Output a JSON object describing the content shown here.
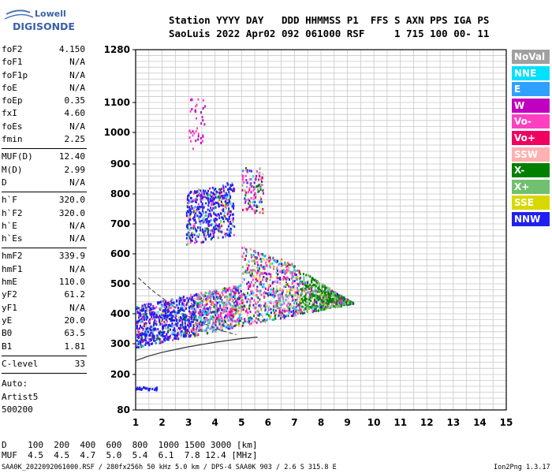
{
  "logo": {
    "line1": "Lowell",
    "line2": "DIGISONDE"
  },
  "header": {
    "line1": "Station YYYY DAY   DDD HHMMSS P1  FFS S AXN PPS IGA PS",
    "line2": "SaoLuis 2022 Apr02 092 061000 RSF     1 715 100 00- 11"
  },
  "params": [
    [
      {
        "k": "foF2",
        "v": "4.150"
      },
      {
        "k": "foF1",
        "v": "N/A"
      },
      {
        "k": "foF1p",
        "v": "N/A"
      },
      {
        "k": "foE",
        "v": "N/A"
      },
      {
        "k": "foEp",
        "v": "0.35"
      },
      {
        "k": "fxI",
        "v": "4.60"
      },
      {
        "k": "foEs",
        "v": "N/A"
      },
      {
        "k": "fmin",
        "v": "2.25"
      }
    ],
    [
      {
        "k": "MUF(D)",
        "v": "12.40"
      },
      {
        "k": "M(D)",
        "v": "2.99"
      },
      {
        "k": "D",
        "v": "N/A"
      }
    ],
    [
      {
        "k": "h`F",
        "v": "320.0"
      },
      {
        "k": "h`F2",
        "v": "320.0"
      },
      {
        "k": "h`E",
        "v": "N/A"
      },
      {
        "k": "h`Es",
        "v": "N/A"
      }
    ],
    [
      {
        "k": "hmF2",
        "v": "339.9"
      },
      {
        "k": "hmF1",
        "v": "N/A"
      },
      {
        "k": "hmE",
        "v": "110.0"
      },
      {
        "k": "yF2",
        "v": "61.2"
      },
      {
        "k": "yF1",
        "v": "N/A"
      },
      {
        "k": "yE",
        "v": "20.0"
      },
      {
        "k": "B0",
        "v": "63.5"
      },
      {
        "k": "B1",
        "v": "1.81"
      }
    ],
    [
      {
        "k": "C-level",
        "v": "33"
      }
    ]
  ],
  "autoscaling": [
    "Auto:",
    "Artist5",
    "500200"
  ],
  "legend": [
    {
      "label": "NoVal",
      "color": "#a0a0a0"
    },
    {
      "label": "NNE",
      "color": "#00e0ff"
    },
    {
      "label": "E",
      "color": "#30a0ff"
    },
    {
      "label": "W",
      "color": "#c000c0"
    },
    {
      "label": "Vo-",
      "color": "#ff40c0"
    },
    {
      "label": "Vo+",
      "color": "#f00060"
    },
    {
      "label": "SSW",
      "color": "#ffb0b0"
    },
    {
      "label": "X-",
      "color": "#008000"
    },
    {
      "label": "X+",
      "color": "#70c070"
    },
    {
      "label": "SSE",
      "color": "#d8d800"
    },
    {
      "label": "NNW",
      "color": "#2020f0"
    }
  ],
  "chart_data": {
    "type": "scatter",
    "xlim": [
      1,
      15
    ],
    "x_ticks": [
      "1",
      "2",
      "3",
      "4",
      "5",
      "6",
      "7",
      "8",
      "9",
      "10",
      "11",
      "12",
      "13",
      "14",
      "15"
    ],
    "y_ticks": [
      {
        "label": "1280",
        "v": 1280
      },
      {
        "label": "1100",
        "v": 1100
      },
      {
        "label": "1000",
        "v": 1000
      },
      {
        "label": "900",
        "v": 900
      },
      {
        "label": "800",
        "v": 800
      },
      {
        "label": "700",
        "v": 700
      },
      {
        "label": "600",
        "v": 600
      },
      {
        "label": "500",
        "v": 500
      },
      {
        "label": "400",
        "v": 400
      },
      {
        "label": "300",
        "v": 300
      },
      {
        "label": "200",
        "v": 200
      },
      {
        "label": "80",
        "v": 80
      }
    ],
    "trace_curve": [
      [
        1,
        245
      ],
      [
        1.5,
        260
      ],
      [
        2,
        272
      ],
      [
        3,
        290
      ],
      [
        4,
        305
      ],
      [
        5,
        317
      ],
      [
        5.6,
        322
      ]
    ],
    "profile_curve": [
      [
        1.1,
        520
      ],
      [
        1.6,
        480
      ],
      [
        2.2,
        440
      ],
      [
        2.8,
        400
      ],
      [
        3.5,
        370
      ],
      [
        4.2,
        345
      ],
      [
        4.8,
        330
      ]
    ]
  },
  "footer": {
    "dline": "D    100  200  400  600  800  1000 1500 3000 [km]",
    "mufline": "MUF  4.5  4.5  4.7  5.0  5.4  6.1  7.8 12.4 [MHz]",
    "fileinfo": "SAA0K_2022092061000.RSF / 280fx256h 50 kHz 5.0 km / DPS-4 SAA0K 903 / 2.6 S 315.8 E",
    "version": "Ion2Png 1.3.17"
  }
}
